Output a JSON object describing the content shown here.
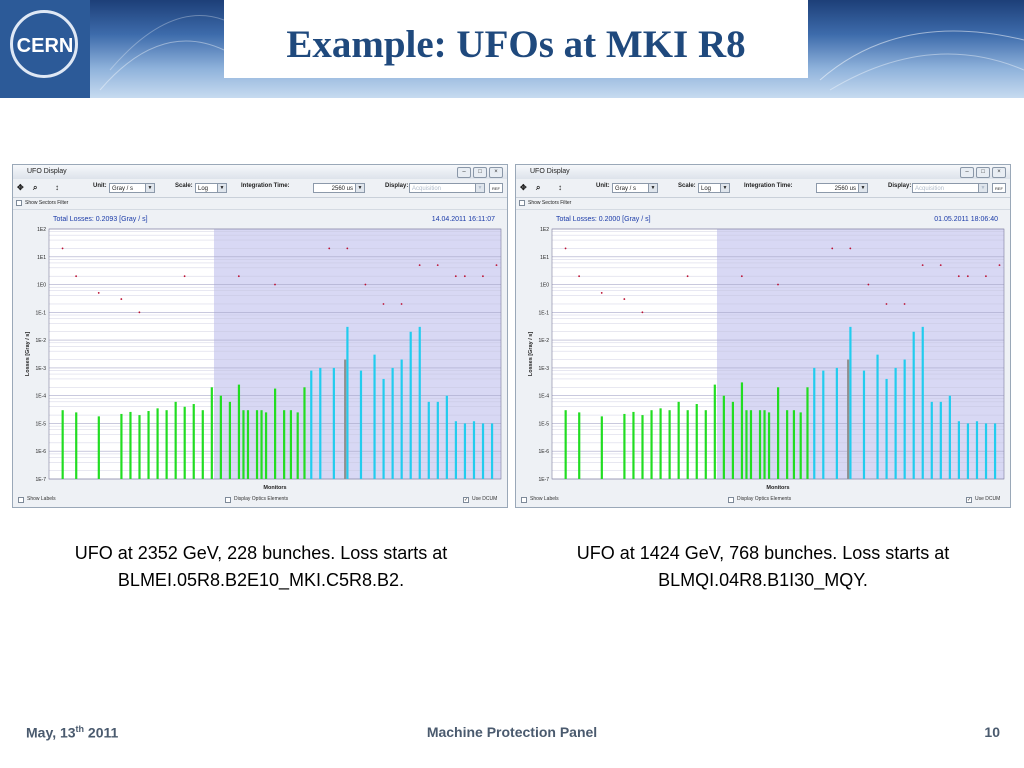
{
  "slide": {
    "title": "Example: UFOs at MKI R8",
    "logo_text": "CERN",
    "footer": {
      "date_main": "May, 13",
      "date_sup": "th",
      "date_year": " 2011",
      "center": "Machine Protection Panel",
      "page": "10"
    }
  },
  "ui": {
    "window_title": "UFO Display",
    "unit_label": "Unit:",
    "unit_value": "Gray / s",
    "scale_label": "Scale:",
    "scale_value": "Log",
    "integration_label": "Integration Time:",
    "integration_value": "2560 us",
    "display_label": "Display:",
    "display_value": "Acquisition",
    "refresh_label": "REF",
    "sectors_filter": "Show Sectors Filter",
    "show_labels": "Show Labels",
    "display_optics": "Display Optics Elements",
    "use_dcum": "Use DCUM",
    "ylabel": "Losses [Gray / s]",
    "xlabel": "Monitors",
    "y_ticks": [
      "1E2",
      "1E1",
      "1E0",
      "1E-1",
      "1E-2",
      "1E-3",
      "1E-4",
      "1E-5",
      "1E-6",
      "1E-7"
    ]
  },
  "windows": [
    {
      "header_left": "Total Losses: 0.2093 [Gray / s]",
      "header_right": "14.04.2011 16:11:07",
      "caption_line1": "UFO at 2352 GeV, 228 bunches. Loss starts at",
      "caption_line2": "BLMEI.05R8.B2E10_MKI.C5R8.B2."
    },
    {
      "header_left": "Total Losses: 0.2000 [Gray / s]",
      "header_right": "01.05.2011 18:06:40",
      "caption_line1": "UFO at 1424 GeV, 768 bunches. Loss starts at",
      "caption_line2": "BLMQI.04R8.B1I30_MQY."
    }
  ],
  "chart_data": [
    {
      "type": "bar",
      "title": "Total Losses: 0.2093 [Gray / s]",
      "xlabel": "Monitors",
      "ylabel": "Losses [Gray / s]",
      "yscale": "log",
      "ylim": [
        1e-07,
        100
      ],
      "colors": {
        "green": "#22dd22",
        "cyan": "#22ccee",
        "gray": "#909090",
        "threshold": "#bb1133"
      },
      "series": [
        {
          "name": "green",
          "values": [
            {
              "x": 0.03,
              "y": 3e-05
            },
            {
              "x": 0.06,
              "y": 2.5e-05
            },
            {
              "x": 0.11,
              "y": 1.8e-05
            },
            {
              "x": 0.16,
              "y": 2.2e-05
            },
            {
              "x": 0.18,
              "y": 2.6e-05
            },
            {
              "x": 0.2,
              "y": 2e-05
            },
            {
              "x": 0.22,
              "y": 2.8e-05
            },
            {
              "x": 0.24,
              "y": 3.5e-05
            },
            {
              "x": 0.26,
              "y": 3e-05
            },
            {
              "x": 0.28,
              "y": 6e-05
            },
            {
              "x": 0.3,
              "y": 4e-05
            },
            {
              "x": 0.32,
              "y": 5e-05
            },
            {
              "x": 0.34,
              "y": 3e-05
            },
            {
              "x": 0.36,
              "y": 0.0002
            },
            {
              "x": 0.38,
              "y": 0.0001
            },
            {
              "x": 0.4,
              "y": 6e-05
            },
            {
              "x": 0.42,
              "y": 0.00025
            },
            {
              "x": 0.43,
              "y": 3e-05
            },
            {
              "x": 0.44,
              "y": 3e-05
            },
            {
              "x": 0.46,
              "y": 3e-05
            },
            {
              "x": 0.47,
              "y": 3e-05
            },
            {
              "x": 0.48,
              "y": 2.5e-05
            },
            {
              "x": 0.5,
              "y": 0.00018
            },
            {
              "x": 0.52,
              "y": 3e-05
            },
            {
              "x": 0.535,
              "y": 3e-05
            },
            {
              "x": 0.55,
              "y": 2.5e-05
            },
            {
              "x": 0.565,
              "y": 0.0002
            }
          ]
        },
        {
          "name": "cyan",
          "values": [
            {
              "x": 0.58,
              "y": 0.0008
            },
            {
              "x": 0.6,
              "y": 0.001
            },
            {
              "x": 0.63,
              "y": 0.001
            },
            {
              "x": 0.66,
              "y": 0.03
            },
            {
              "x": 0.69,
              "y": 0.0008
            },
            {
              "x": 0.72,
              "y": 0.003
            },
            {
              "x": 0.74,
              "y": 0.0004
            },
            {
              "x": 0.76,
              "y": 0.001
            },
            {
              "x": 0.78,
              "y": 0.002
            },
            {
              "x": 0.8,
              "y": 0.02
            },
            {
              "x": 0.82,
              "y": 0.03
            },
            {
              "x": 0.84,
              "y": 6e-05
            },
            {
              "x": 0.86,
              "y": 6e-05
            },
            {
              "x": 0.88,
              "y": 0.0001
            },
            {
              "x": 0.9,
              "y": 1.2e-05
            },
            {
              "x": 0.92,
              "y": 1e-05
            },
            {
              "x": 0.94,
              "y": 1.2e-05
            },
            {
              "x": 0.96,
              "y": 1e-05
            },
            {
              "x": 0.98,
              "y": 1e-05
            }
          ]
        },
        {
          "name": "gray",
          "values": [
            {
              "x": 0.655,
              "y": 0.002
            }
          ]
        },
        {
          "name": "threshold",
          "values": [
            {
              "x": 0.03,
              "y": 20
            },
            {
              "x": 0.06,
              "y": 2
            },
            {
              "x": 0.11,
              "y": 0.5
            },
            {
              "x": 0.16,
              "y": 0.3
            },
            {
              "x": 0.2,
              "y": 0.1
            },
            {
              "x": 0.3,
              "y": 2
            },
            {
              "x": 0.42,
              "y": 2
            },
            {
              "x": 0.5,
              "y": 1
            },
            {
              "x": 0.62,
              "y": 20
            },
            {
              "x": 0.66,
              "y": 20
            },
            {
              "x": 0.7,
              "y": 1
            },
            {
              "x": 0.74,
              "y": 0.2
            },
            {
              "x": 0.78,
              "y": 0.2
            },
            {
              "x": 0.82,
              "y": 5
            },
            {
              "x": 0.86,
              "y": 5
            },
            {
              "x": 0.9,
              "y": 2
            },
            {
              "x": 0.92,
              "y": 2
            },
            {
              "x": 0.96,
              "y": 2
            },
            {
              "x": 0.99,
              "y": 5
            }
          ]
        }
      ]
    },
    {
      "type": "bar",
      "title": "Total Losses: 0.2000 [Gray / s]",
      "xlabel": "Monitors",
      "ylabel": "Losses [Gray / s]",
      "yscale": "log",
      "ylim": [
        1e-07,
        100
      ],
      "colors": {
        "green": "#22dd22",
        "cyan": "#22ccee",
        "gray": "#909090",
        "threshold": "#bb1133"
      },
      "series": [
        {
          "name": "green",
          "values": [
            {
              "x": 0.03,
              "y": 3e-05
            },
            {
              "x": 0.06,
              "y": 2.5e-05
            },
            {
              "x": 0.11,
              "y": 1.8e-05
            },
            {
              "x": 0.16,
              "y": 2.2e-05
            },
            {
              "x": 0.18,
              "y": 2.6e-05
            },
            {
              "x": 0.2,
              "y": 2e-05
            },
            {
              "x": 0.22,
              "y": 3e-05
            },
            {
              "x": 0.24,
              "y": 3.5e-05
            },
            {
              "x": 0.26,
              "y": 3e-05
            },
            {
              "x": 0.28,
              "y": 6e-05
            },
            {
              "x": 0.3,
              "y": 3e-05
            },
            {
              "x": 0.32,
              "y": 5e-05
            },
            {
              "x": 0.34,
              "y": 3e-05
            },
            {
              "x": 0.36,
              "y": 0.00025
            },
            {
              "x": 0.38,
              "y": 0.0001
            },
            {
              "x": 0.4,
              "y": 6e-05
            },
            {
              "x": 0.42,
              "y": 0.0003
            },
            {
              "x": 0.43,
              "y": 3e-05
            },
            {
              "x": 0.44,
              "y": 3e-05
            },
            {
              "x": 0.46,
              "y": 3e-05
            },
            {
              "x": 0.47,
              "y": 3e-05
            },
            {
              "x": 0.48,
              "y": 2.5e-05
            },
            {
              "x": 0.5,
              "y": 0.0002
            },
            {
              "x": 0.52,
              "y": 3e-05
            },
            {
              "x": 0.535,
              "y": 3e-05
            },
            {
              "x": 0.55,
              "y": 2.5e-05
            },
            {
              "x": 0.565,
              "y": 0.0002
            }
          ]
        },
        {
          "name": "cyan",
          "values": [
            {
              "x": 0.58,
              "y": 0.001
            },
            {
              "x": 0.6,
              "y": 0.0008
            },
            {
              "x": 0.63,
              "y": 0.001
            },
            {
              "x": 0.66,
              "y": 0.03
            },
            {
              "x": 0.69,
              "y": 0.0008
            },
            {
              "x": 0.72,
              "y": 0.003
            },
            {
              "x": 0.74,
              "y": 0.0004
            },
            {
              "x": 0.76,
              "y": 0.001
            },
            {
              "x": 0.78,
              "y": 0.002
            },
            {
              "x": 0.8,
              "y": 0.02
            },
            {
              "x": 0.82,
              "y": 0.03
            },
            {
              "x": 0.84,
              "y": 6e-05
            },
            {
              "x": 0.86,
              "y": 6e-05
            },
            {
              "x": 0.88,
              "y": 0.0001
            },
            {
              "x": 0.9,
              "y": 1.2e-05
            },
            {
              "x": 0.92,
              "y": 1e-05
            },
            {
              "x": 0.94,
              "y": 1.2e-05
            },
            {
              "x": 0.96,
              "y": 1e-05
            },
            {
              "x": 0.98,
              "y": 1e-05
            }
          ]
        },
        {
          "name": "gray",
          "values": [
            {
              "x": 0.655,
              "y": 0.002
            }
          ]
        },
        {
          "name": "threshold",
          "values": [
            {
              "x": 0.03,
              "y": 20
            },
            {
              "x": 0.06,
              "y": 2
            },
            {
              "x": 0.11,
              "y": 0.5
            },
            {
              "x": 0.16,
              "y": 0.3
            },
            {
              "x": 0.2,
              "y": 0.1
            },
            {
              "x": 0.3,
              "y": 2
            },
            {
              "x": 0.42,
              "y": 2
            },
            {
              "x": 0.5,
              "y": 1
            },
            {
              "x": 0.62,
              "y": 20
            },
            {
              "x": 0.66,
              "y": 20
            },
            {
              "x": 0.7,
              "y": 1
            },
            {
              "x": 0.74,
              "y": 0.2
            },
            {
              "x": 0.78,
              "y": 0.2
            },
            {
              "x": 0.82,
              "y": 5
            },
            {
              "x": 0.86,
              "y": 5
            },
            {
              "x": 0.9,
              "y": 2
            },
            {
              "x": 0.92,
              "y": 2
            },
            {
              "x": 0.96,
              "y": 2
            },
            {
              "x": 0.99,
              "y": 5
            }
          ]
        }
      ]
    }
  ]
}
